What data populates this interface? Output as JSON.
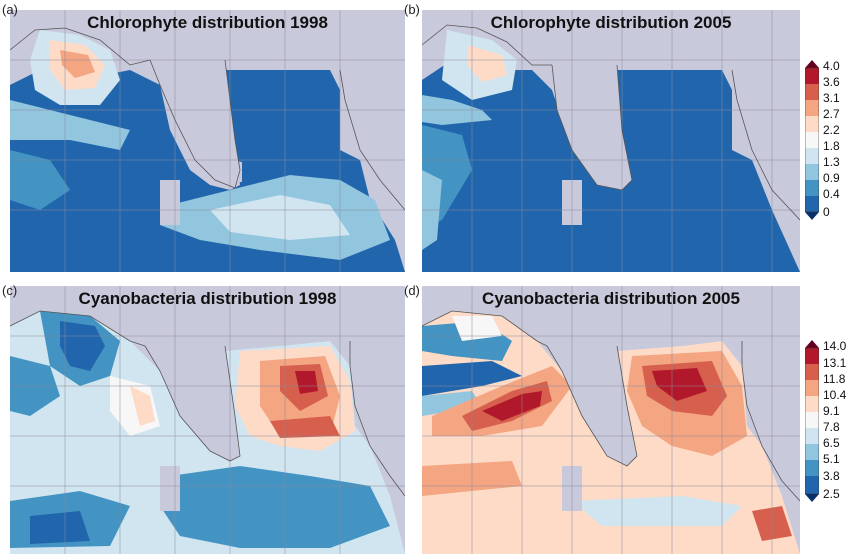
{
  "panels": [
    {
      "label": "(a)",
      "title": "Chlorophyte distribution 1998",
      "scheme": "chl98"
    },
    {
      "label": "(b)",
      "title": "Chlorophyte distribution 2005",
      "scheme": "chl05"
    },
    {
      "label": "(c)",
      "title": "Cyanobacteria distribution 1998",
      "scheme": "cy98"
    },
    {
      "label": "(d)",
      "title": "Cyanobacteria distribution 2005",
      "scheme": "cy05"
    }
  ],
  "colorbars": [
    {
      "name": "chlorophyte",
      "ticks": [
        "4.0",
        "3.6",
        "3.1",
        "2.7",
        "2.2",
        "1.8",
        "1.3",
        "0.9",
        "0.4",
        "0"
      ]
    },
    {
      "name": "cyanobacteria",
      "ticks": [
        "14.0",
        "13.1",
        "11.8",
        "10.4",
        "9.1",
        "7.8",
        "6.5",
        "5.1",
        "3.8",
        "2.5"
      ]
    }
  ],
  "colors": {
    "land": "#c9c9dc",
    "coast": "#555555",
    "grid": "#8a8a9a",
    "ramp": [
      "#08306b",
      "#2166ac",
      "#4393c3",
      "#92c5de",
      "#d1e5f0",
      "#f7f7f7",
      "#fddbc7",
      "#f4a582",
      "#d6604d",
      "#b2182b",
      "#67001f"
    ]
  }
}
